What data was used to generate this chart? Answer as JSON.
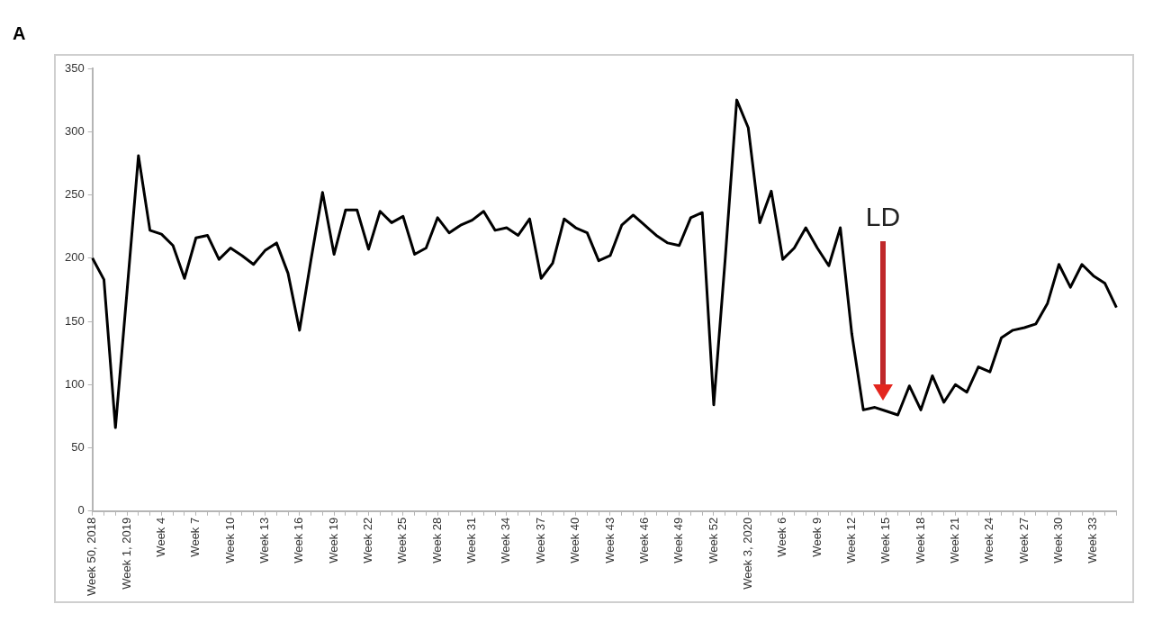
{
  "chart_data": {
    "type": "line",
    "title": "A",
    "categories": [
      "Week 50, 2018",
      null,
      null,
      "Week 1, 2019",
      null,
      null,
      "Week 4",
      null,
      null,
      "Week 7",
      null,
      null,
      "Week 10",
      null,
      null,
      "Week 13",
      null,
      null,
      "Week 16",
      null,
      null,
      "Week 19",
      null,
      null,
      "Week 22",
      null,
      null,
      "Week 25",
      null,
      null,
      "Week 28",
      null,
      null,
      "Week 31",
      null,
      null,
      "Week 34",
      null,
      null,
      "Week 37",
      null,
      null,
      "Week 40",
      null,
      null,
      "Week 43",
      null,
      null,
      "Week 46",
      null,
      null,
      "Week 49",
      null,
      null,
      "Week 52",
      null,
      null,
      "Week 3, 2020",
      null,
      null,
      "Week 6",
      null,
      null,
      "Week 9",
      null,
      null,
      "Week 12",
      null,
      null,
      "Week 15",
      null,
      null,
      "Week 18",
      null,
      null,
      "Week 21",
      null,
      null,
      "Week 24",
      null,
      null,
      "Week 27",
      null,
      null,
      "Week 30",
      null,
      null,
      "Week 33",
      null,
      null
    ],
    "series": [
      {
        "color": "#000000",
        "values": [
          200,
          183,
          66,
          173,
          281,
          222,
          219,
          210,
          184,
          216,
          218,
          199,
          208,
          202,
          195,
          206,
          212,
          188,
          143,
          199,
          252,
          203,
          238,
          238,
          207,
          237,
          228,
          233,
          203,
          208,
          232,
          220,
          226,
          230,
          237,
          222,
          224,
          218,
          231,
          184,
          196,
          231,
          224,
          220,
          198,
          202,
          226,
          234,
          226,
          218,
          212,
          210,
          232,
          236,
          84,
          200,
          325,
          303,
          228,
          253,
          199,
          208,
          224,
          208,
          194,
          224,
          140,
          80,
          82,
          79,
          76,
          99,
          80,
          107,
          86,
          100,
          94,
          114,
          110,
          137,
          143,
          145,
          148,
          164,
          195,
          177,
          195,
          186,
          180,
          161
        ]
      }
    ],
    "ylim": [
      0,
      350
    ],
    "yticks": [
      0,
      50,
      100,
      150,
      200,
      250,
      300,
      350
    ],
    "annotations": [
      "LD"
    ],
    "marker": "none",
    "line_style": "solid"
  }
}
